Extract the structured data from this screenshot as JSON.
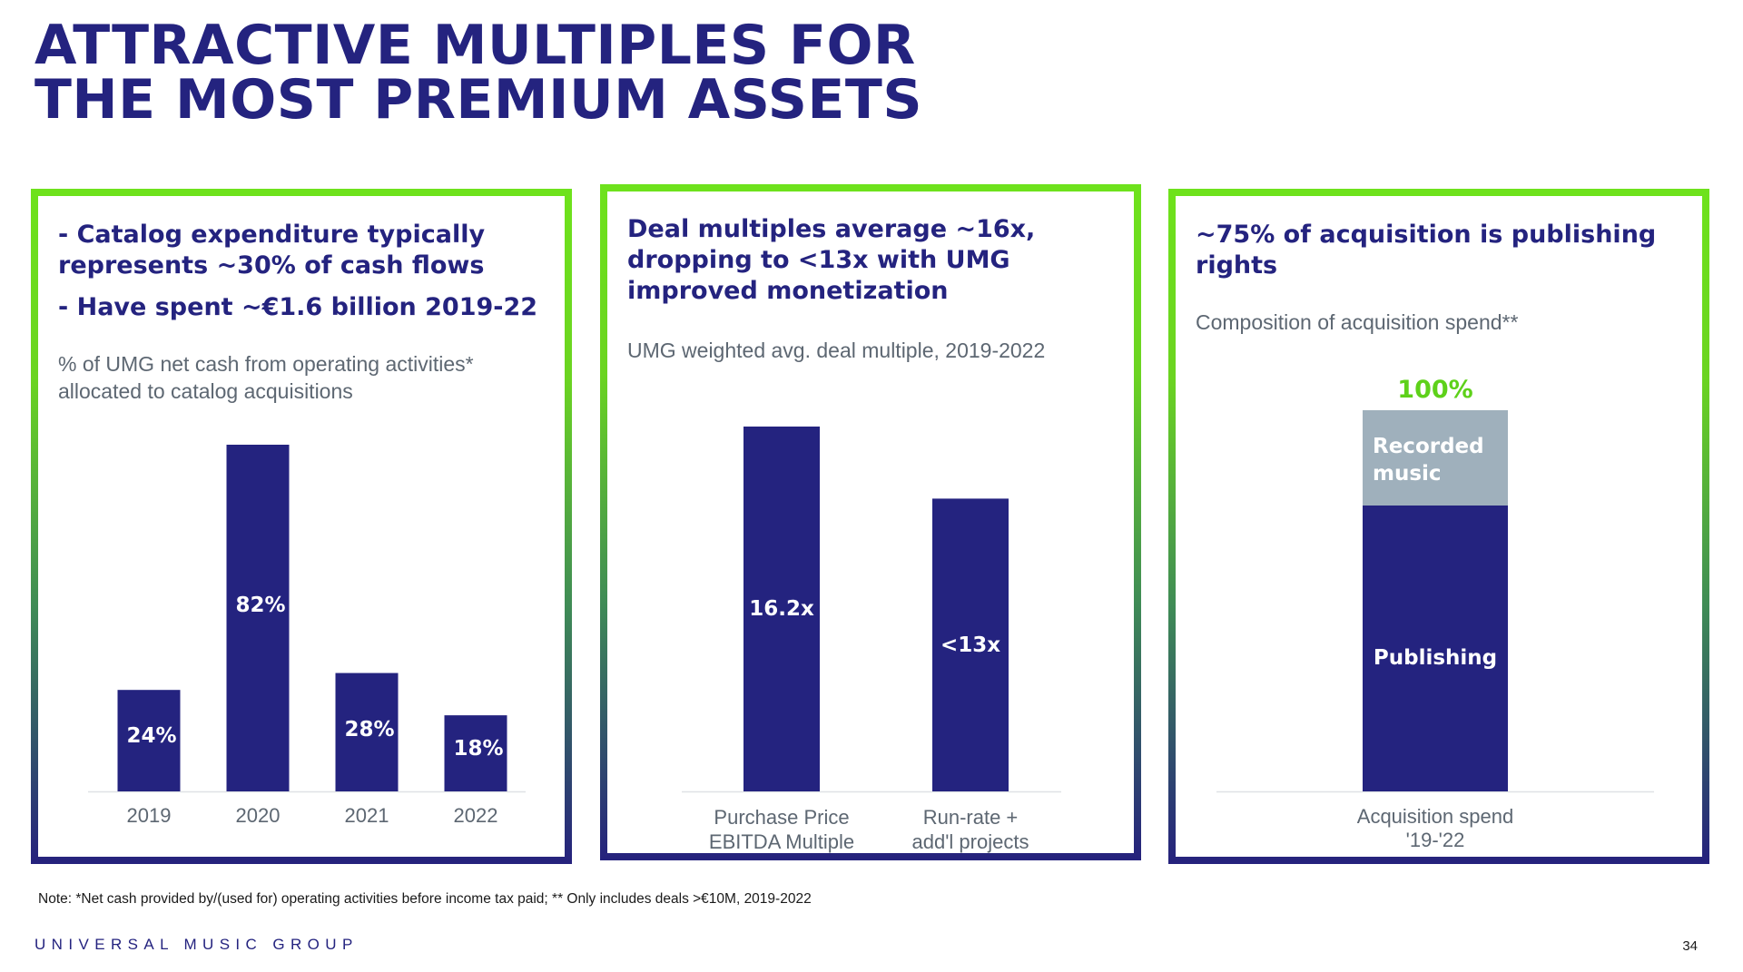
{
  "title": {
    "line1": "ATTRACTIVE MULTIPLES FOR",
    "line2": "THE MOST PREMIUM ASSETS"
  },
  "panels": [
    {
      "heading_lines": [
        "- Catalog expenditure typically",
        "represents ~30% of cash flows",
        "- Have spent ~€1.6 billion 2019-22"
      ],
      "subtitle_lines": [
        "% of UMG net cash from operating activities*",
        "allocated to catalog acquisitions"
      ]
    },
    {
      "heading_lines": [
        "Deal multiples average ~16x,",
        "dropping to <13x with UMG",
        "improved monetization"
      ],
      "subtitle_lines": [
        "UMG weighted avg. deal multiple, 2019-2022"
      ]
    },
    {
      "heading_lines": [
        "~75% of acquisition is publishing",
        "rights"
      ],
      "subtitle_lines": [
        "Composition of acquisition spend**"
      ]
    }
  ],
  "chart_data": [
    {
      "type": "bar",
      "categories": [
        "2019",
        "2020",
        "2021",
        "2022"
      ],
      "values": [
        24,
        82,
        28,
        18
      ],
      "value_labels": [
        "24%",
        "82%",
        "28%",
        "18%"
      ],
      "unit": "%",
      "ylim": [
        0,
        82
      ],
      "color": "#24237f"
    },
    {
      "type": "bar",
      "categories": [
        [
          "Purchase Price",
          "EBITDA Multiple"
        ],
        [
          "Run-rate +",
          "add'l projects"
        ]
      ],
      "values": [
        16.2,
        13
      ],
      "value_labels": [
        "16.2x",
        "<13x"
      ],
      "unit": "x",
      "ylim": [
        0,
        16.2
      ],
      "color": "#24237f"
    },
    {
      "type": "bar",
      "stacked": true,
      "categories": [
        [
          "Acquisition spend",
          "'19-'22"
        ]
      ],
      "total_label": "100%",
      "series": [
        {
          "name": "Publishing",
          "values": [
            75
          ],
          "color": "#24237f"
        },
        {
          "name": "Recorded music",
          "name_lines": [
            "Recorded",
            "music"
          ],
          "values": [
            25
          ],
          "color": "#9fb0bc"
        }
      ],
      "ylim": [
        0,
        100
      ],
      "total_color": "#5ed11a"
    }
  ],
  "footer": {
    "note": "Note: *Net cash provided by/(used for) operating activities before income tax paid; ** Only includes deals >€10M, 2019-2022",
    "brand": "UNIVERSAL MUSIC GROUP",
    "page_number": "34"
  }
}
